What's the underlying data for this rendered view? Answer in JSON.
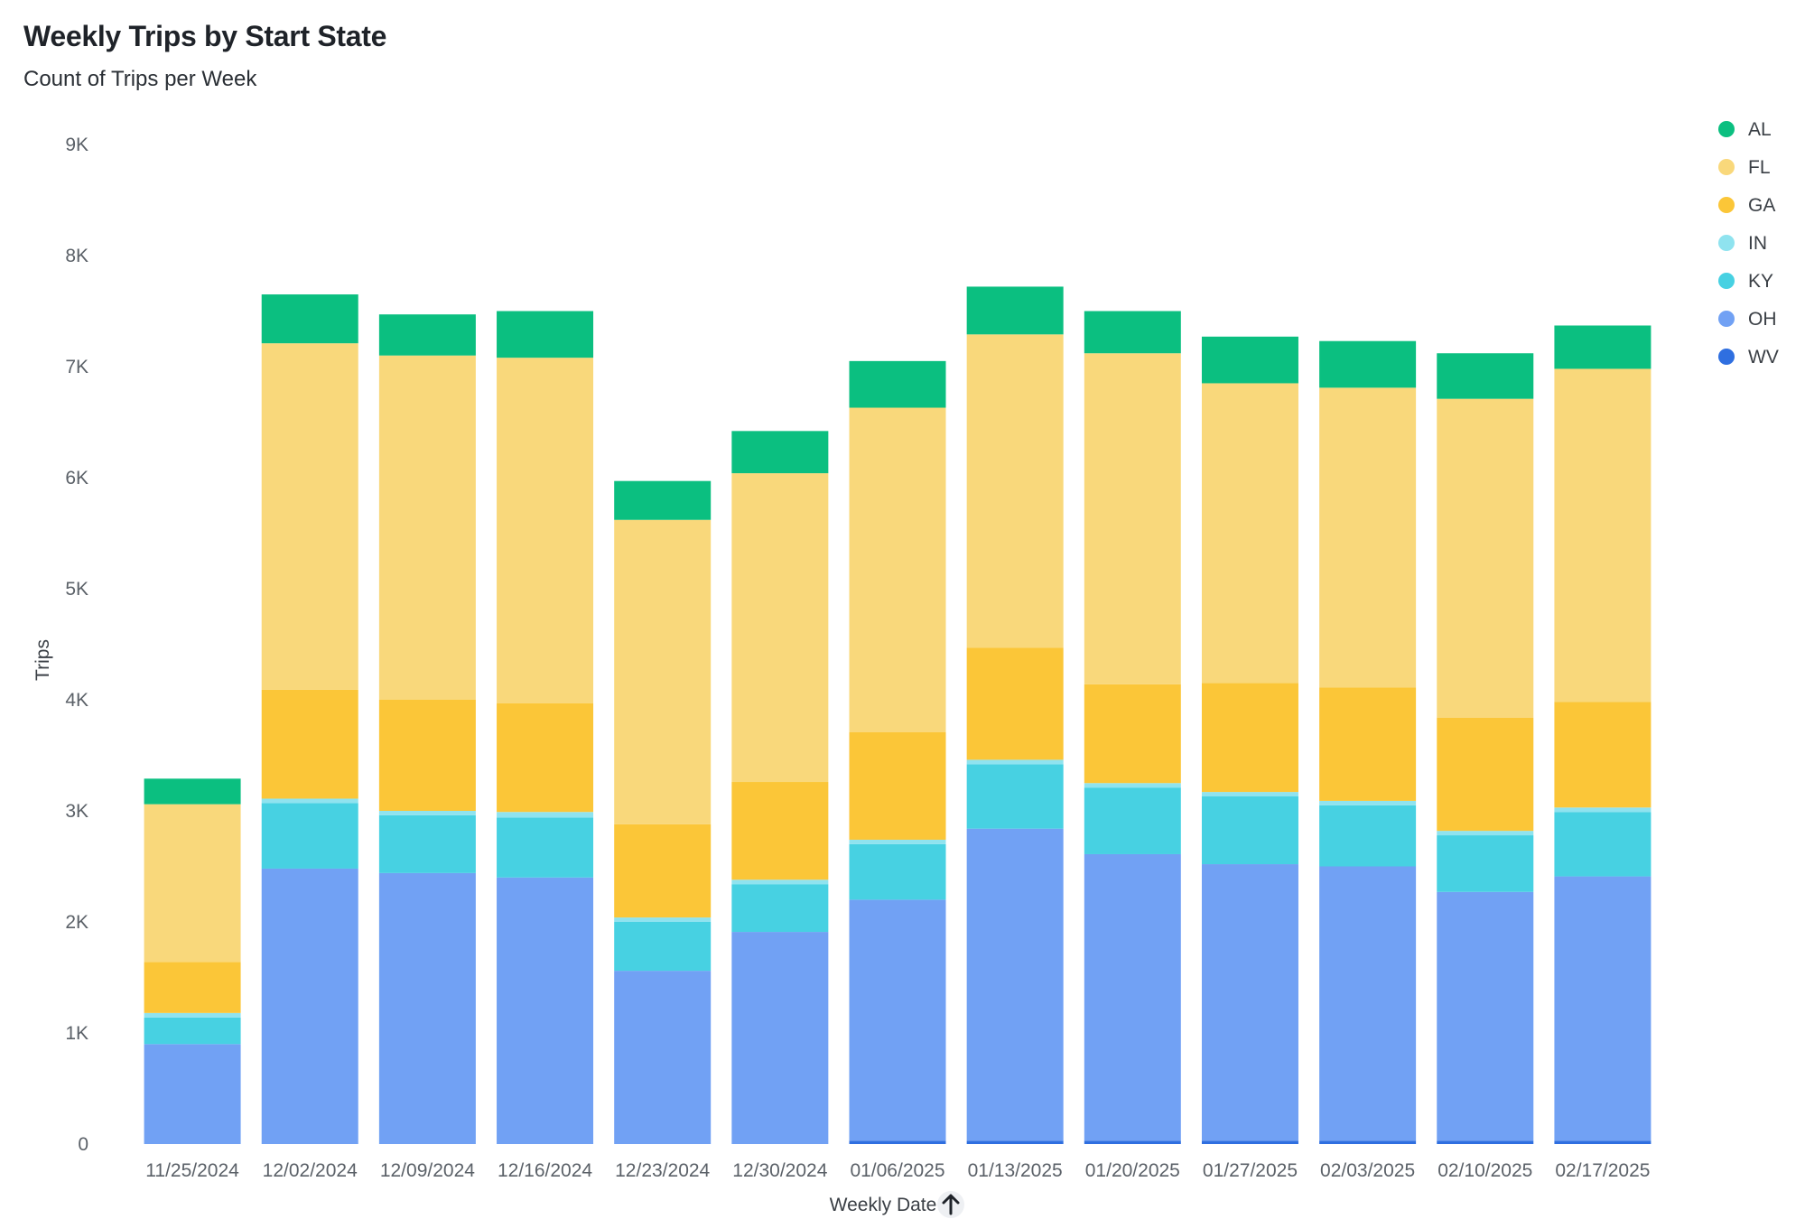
{
  "title": "Weekly Trips by Start State",
  "subtitle": "Count of Trips per Week",
  "chart_data": {
    "type": "bar",
    "stacked": true,
    "title": "Weekly Trips by Start State",
    "subtitle": "Count of Trips per Week",
    "xlabel": "Weekly Date",
    "ylabel": "Trips",
    "sort_indicator": "ascending",
    "ylim": [
      0,
      9000
    ],
    "yticks": [
      0,
      1000,
      2000,
      3000,
      4000,
      5000,
      6000,
      7000,
      8000,
      9000
    ],
    "ytick_labels": [
      "0",
      "1K",
      "2K",
      "3K",
      "4K",
      "5K",
      "6K",
      "7K",
      "8K",
      "9K"
    ],
    "legend_position": "top-right",
    "categories": [
      "11/25/2024",
      "12/02/2024",
      "12/09/2024",
      "12/16/2024",
      "12/23/2024",
      "12/30/2024",
      "01/06/2025",
      "01/13/2025",
      "01/20/2025",
      "01/27/2025",
      "02/03/2025",
      "02/10/2025",
      "02/17/2025"
    ],
    "series": [
      {
        "name": "WV",
        "color": "#2f6fe0",
        "values": [
          0,
          0,
          0,
          0,
          0,
          0,
          30,
          30,
          30,
          30,
          30,
          30,
          30
        ]
      },
      {
        "name": "OH",
        "color": "#71a1f4",
        "values": [
          900,
          2480,
          2440,
          2400,
          1560,
          1910,
          2170,
          2810,
          2580,
          2490,
          2470,
          2240,
          2380
        ]
      },
      {
        "name": "KY",
        "color": "#47d1e2",
        "values": [
          240,
          590,
          520,
          540,
          440,
          430,
          500,
          580,
          600,
          610,
          550,
          510,
          580
        ]
      },
      {
        "name": "IN",
        "color": "#8fe3ef",
        "values": [
          40,
          40,
          40,
          50,
          40,
          40,
          40,
          40,
          40,
          40,
          40,
          40,
          40
        ]
      },
      {
        "name": "GA",
        "color": "#fbc638",
        "values": [
          460,
          980,
          1000,
          980,
          840,
          880,
          970,
          1010,
          890,
          980,
          1020,
          1020,
          950
        ]
      },
      {
        "name": "FL",
        "color": "#f9d87b",
        "values": [
          1420,
          3120,
          3100,
          3110,
          2740,
          2780,
          2920,
          2820,
          2980,
          2700,
          2700,
          2870,
          3000
        ]
      },
      {
        "name": "AL",
        "color": "#0bbf80",
        "values": [
          230,
          440,
          370,
          420,
          350,
          380,
          420,
          430,
          380,
          420,
          420,
          410,
          390
        ]
      }
    ],
    "legend_order": [
      "AL",
      "FL",
      "GA",
      "IN",
      "KY",
      "OH",
      "WV"
    ]
  }
}
